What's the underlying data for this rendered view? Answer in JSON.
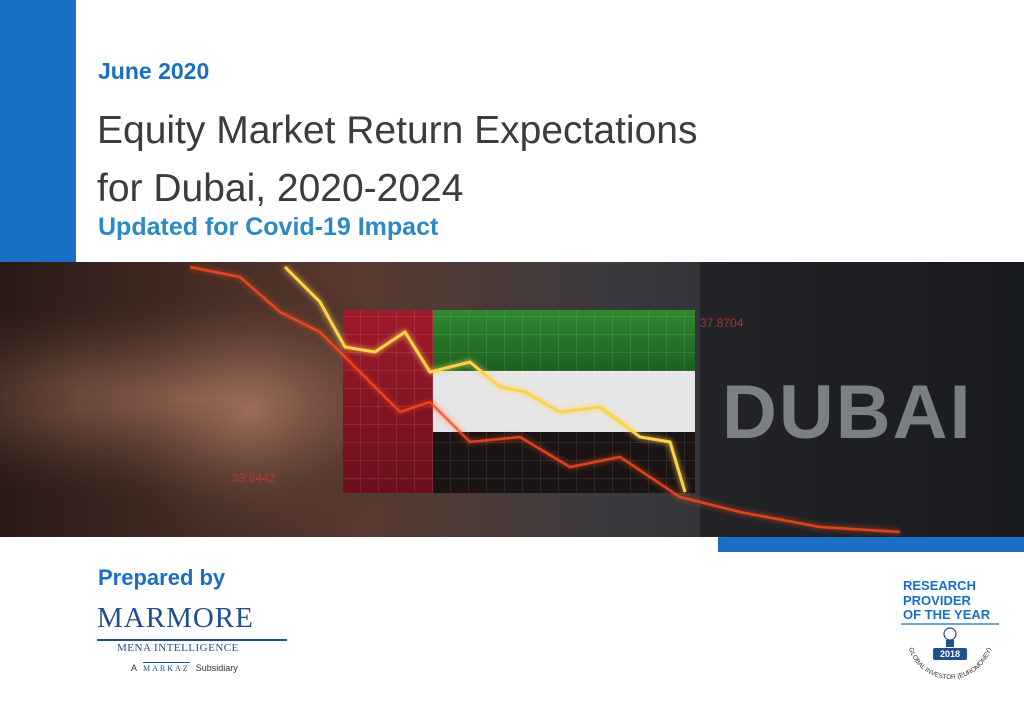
{
  "report": {
    "date": "June 2020",
    "title_line1": "Equity Market Return Expectations",
    "title_line2": "for Dubai, 2020-2024",
    "subtitle": "Updated for Covid-19 Impact"
  },
  "hero": {
    "overlay_word": "DUBAI",
    "ticker_1": "37.8704",
    "ticker_2": "33.8442"
  },
  "prepared_by": {
    "label": "Prepared by",
    "logo_name": "MARMORE",
    "logo_tagline": "MENA INTELLIGENCE",
    "subsidiary_prefix": "A",
    "parent_name": "MARKAZ",
    "subsidiary_suffix": "Subsidiary"
  },
  "award": {
    "line1": "RESEARCH",
    "line2": "PROVIDER",
    "line3": "OF THE YEAR",
    "year": "2018",
    "arc_text": "GLOBAL INVESTOR (EUROMONEY)"
  },
  "colors": {
    "brand_blue": "#1a6fc4",
    "title_gray": "#3c3c3c",
    "subtitle_blue": "#2b8ac6"
  }
}
